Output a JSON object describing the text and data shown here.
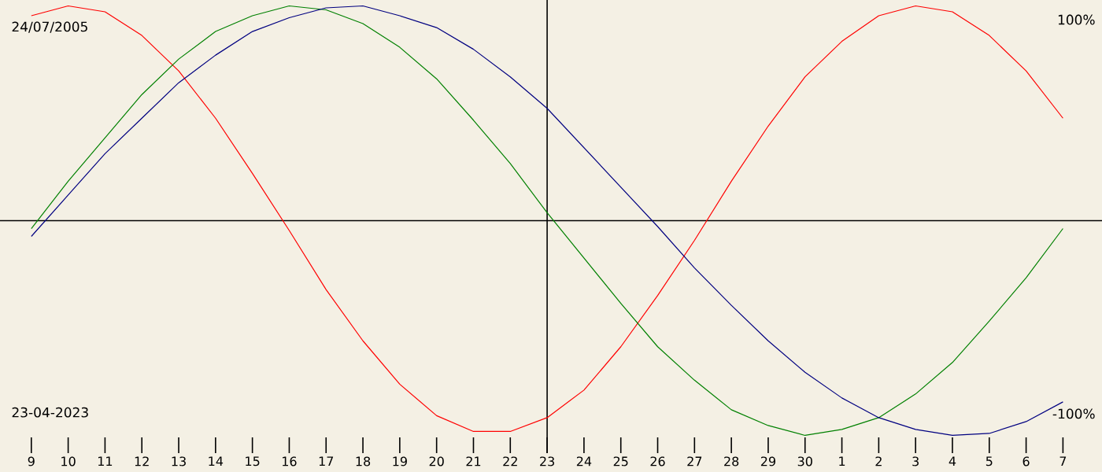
{
  "chart_data": {
    "type": "line",
    "categories": [
      "9",
      "10",
      "11",
      "12",
      "13",
      "14",
      "15",
      "16",
      "17",
      "18",
      "19",
      "20",
      "21",
      "22",
      "23",
      "24",
      "25",
      "26",
      "27",
      "28",
      "29",
      "30",
      "1",
      "2",
      "3",
      "4",
      "5",
      "6",
      "7"
    ],
    "ylim": [
      -120,
      110
    ],
    "yticks": [
      {
        "value": 100,
        "label": "100%"
      },
      {
        "value": -100,
        "label": "-100%"
      }
    ],
    "series": [
      {
        "color": "#ff0000",
        "values": [
          102,
          107,
          104,
          92,
          74,
          50,
          22,
          -7,
          -37,
          -63,
          -85,
          -101,
          -109,
          -109,
          -102,
          -88,
          -66,
          -40,
          -12,
          18,
          46,
          71,
          89,
          102,
          107,
          104,
          92,
          74,
          50
        ]
      },
      {
        "color": "#008000",
        "values": [
          -6,
          18,
          40,
          62,
          80,
          94,
          102,
          107,
          105,
          98,
          86,
          70,
          49,
          27,
          2,
          -21,
          -44,
          -66,
          -83,
          -98,
          -106,
          -111,
          -108,
          -102,
          -90,
          -74,
          -53,
          -31,
          -6
        ]
      },
      {
        "color": "#000080",
        "values": [
          -10,
          11,
          32,
          50,
          68,
          82,
          94,
          101,
          106,
          107,
          102,
          96,
          85,
          71,
          55,
          35,
          15,
          -5,
          -26,
          -45,
          -63,
          -79,
          -92,
          -102,
          -108,
          -111,
          -110,
          -104,
          -94
        ]
      }
    ],
    "ref_lines": [
      {
        "axis": "x",
        "value": "23"
      },
      {
        "axis": "y",
        "value": -2
      }
    ],
    "annotations": [
      "24/07/2005",
      "23-04-2023"
    ],
    "marker": "none",
    "line_style": "solid"
  }
}
